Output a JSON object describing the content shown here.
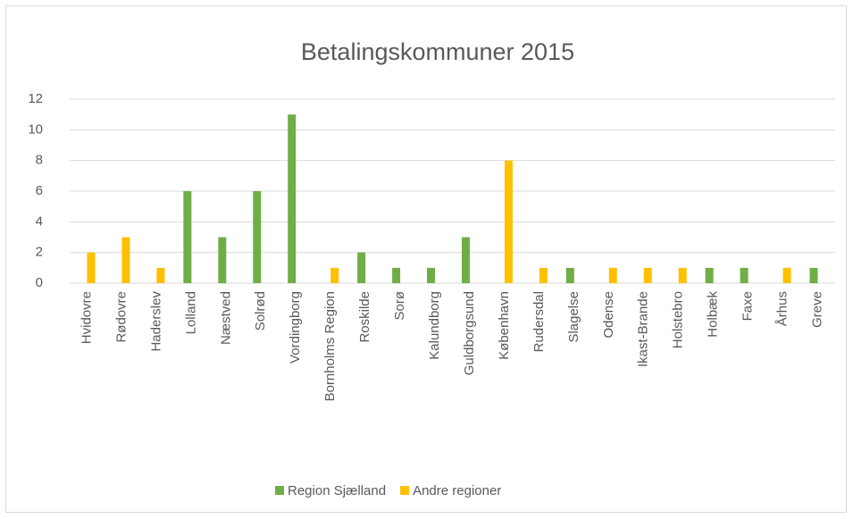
{
  "chart_data": {
    "type": "bar",
    "title": "Betalingskommuner 2015",
    "categories": [
      "Hvidovre",
      "Rødovre",
      "Haderslev",
      "Lolland",
      "Næstved",
      "Solrød",
      "Vordingborg",
      "Bornholms Region",
      "Roskilde",
      "Sorø",
      "Kalundborg",
      "Guldborgsund",
      "København",
      "Rudersdal",
      "Slagelse",
      "Odense",
      "Ikast-Brande",
      "Holstebro",
      "Holbæk",
      "Faxe",
      "Århus",
      "Greve"
    ],
    "series": [
      {
        "name": "Region Sjælland",
        "color": "#70ad47",
        "values": [
          null,
          null,
          null,
          6,
          3,
          6,
          11,
          null,
          2,
          1,
          1,
          3,
          null,
          null,
          1,
          null,
          null,
          null,
          1,
          1,
          null,
          1
        ]
      },
      {
        "name": "Andre regioner",
        "color": "#ffc000",
        "values": [
          2,
          3,
          1,
          null,
          null,
          null,
          null,
          1,
          null,
          null,
          null,
          null,
          8,
          1,
          null,
          1,
          1,
          1,
          null,
          null,
          1,
          null
        ]
      }
    ],
    "ylim": [
      0,
      12
    ],
    "yticks": [
      0,
      2,
      4,
      6,
      8,
      10,
      12
    ],
    "grid": true,
    "legend": "bottom"
  }
}
